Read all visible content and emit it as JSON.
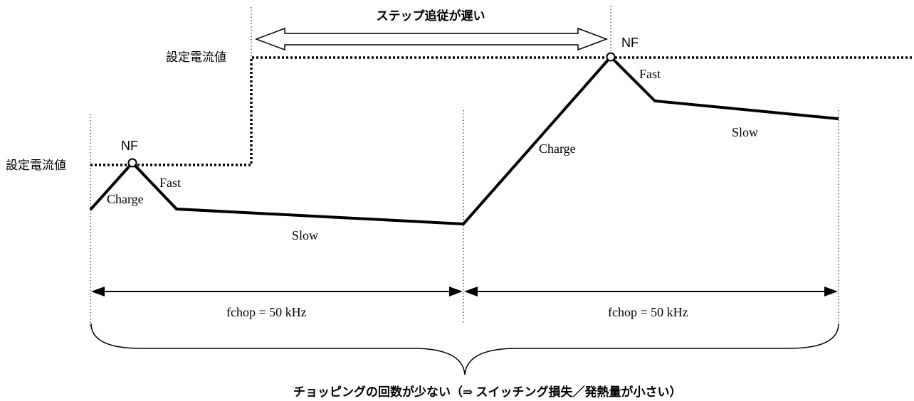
{
  "labels": {
    "setpoint_left": "設定電流値",
    "setpoint_top": "設定電流値",
    "nf_left": "NF",
    "nf_right": "NF",
    "charge_left": "Charge",
    "fast_left": "Fast",
    "slow_left": "Slow",
    "charge_right": "Charge",
    "fast_right": "Fast",
    "slow_right": "Slow",
    "fchop_left": "fchop = 50 kHz",
    "fchop_right": "fchop = 50 kHz",
    "step_follow_slow": "ステップ追従が遅い",
    "footer_note": "チョッピングの回数が少ない（⇒ スイッチング損失／発熱量が小さい）"
  },
  "colors": {
    "stroke": "#000000",
    "background": "#ffffff"
  }
}
